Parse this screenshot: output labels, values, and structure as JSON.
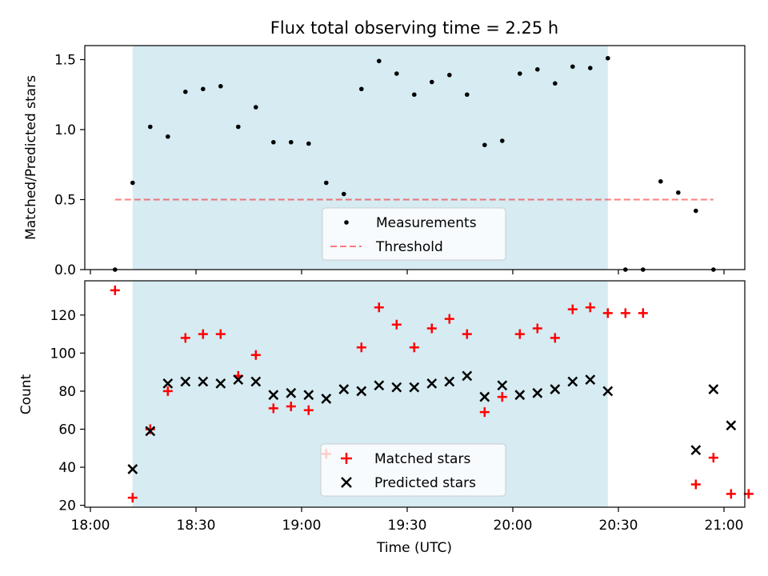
{
  "colors": {
    "shade": "#ADD8E6",
    "measurement": "#000000",
    "threshold": "#ff0000",
    "matched": "#ff0000",
    "predicted": "#000000"
  },
  "chart_data": [
    {
      "type": "scatter",
      "title": "Flux total observing time = 2.25 h",
      "ylabel": "Matched/Predicted stars",
      "xlabel": "",
      "x_axis": "time (minutes after 18:00 UTC)",
      "ylim": [
        0,
        1.6
      ],
      "yticks": [
        "0.0",
        "0.5",
        "1.0",
        "1.5"
      ],
      "shaded_interval": [
        "18:12",
        "20:27"
      ],
      "legend": {
        "placement": "lower center",
        "entries": [
          "Measurements",
          "Threshold"
        ]
      },
      "series": [
        {
          "name": "Measurements",
          "marker": "dot",
          "x": [
            "18:07",
            "18:12",
            "18:17",
            "18:22",
            "18:27",
            "18:32",
            "18:37",
            "18:42",
            "18:47",
            "18:52",
            "18:57",
            "19:02",
            "19:07",
            "19:12",
            "19:17",
            "19:22",
            "19:27",
            "19:32",
            "19:37",
            "19:42",
            "19:47",
            "19:52",
            "19:57",
            "20:02",
            "20:07",
            "20:12",
            "20:17",
            "20:22",
            "20:27",
            "20:32",
            "20:37",
            "20:42",
            "20:47",
            "20:52",
            "20:57"
          ],
          "values": [
            0.0,
            0.62,
            1.02,
            0.95,
            1.27,
            1.29,
            1.31,
            1.02,
            1.16,
            0.91,
            0.91,
            0.9,
            0.62,
            0.54,
            1.29,
            1.49,
            1.4,
            1.25,
            1.34,
            1.39,
            1.25,
            0.89,
            0.92,
            1.4,
            1.43,
            1.33,
            1.45,
            1.44,
            1.51,
            0.0,
            0.0,
            0.63,
            0.55,
            0.42,
            0.0
          ]
        },
        {
          "name": "Threshold",
          "line": "dashed",
          "x": [
            "18:07",
            "20:57"
          ],
          "values": [
            0.5,
            0.5
          ]
        }
      ]
    },
    {
      "type": "scatter",
      "title": "",
      "ylabel": "Count",
      "xlabel": "Time (UTC)",
      "xticks": [
        "18:00",
        "18:30",
        "19:00",
        "19:30",
        "20:00",
        "20:30",
        "21:00"
      ],
      "ylim": [
        19,
        138
      ],
      "yticks": [
        "20",
        "40",
        "60",
        "80",
        "100",
        "120"
      ],
      "shaded_interval": [
        "18:12",
        "20:27"
      ],
      "legend": {
        "placement": "lower center",
        "entries": [
          "Matched stars",
          "Predicted stars"
        ]
      },
      "series": [
        {
          "name": "Matched stars",
          "marker": "plus",
          "x": [
            "18:07",
            "18:12",
            "18:17",
            "18:22",
            "18:27",
            "18:32",
            "18:37",
            "18:42",
            "18:47",
            "18:52",
            "18:57",
            "19:02",
            "19:07",
            "19:17",
            "19:22",
            "19:27",
            "19:32",
            "19:37",
            "19:42",
            "19:47",
            "19:52",
            "19:57",
            "20:02",
            "20:07",
            "20:12",
            "20:17",
            "20:22",
            "20:27",
            "20:32",
            "20:37",
            "20:52",
            "20:57",
            "21:02",
            "21:07"
          ],
          "values": [
            133,
            24,
            60,
            80,
            108,
            110,
            110,
            88,
            99,
            71,
            72,
            70,
            47,
            103,
            124,
            115,
            103,
            113,
            118,
            110,
            69,
            77,
            110,
            113,
            108,
            123,
            124,
            121,
            121,
            121,
            31,
            45,
            26,
            26
          ]
        },
        {
          "name": "Predicted stars",
          "marker": "x",
          "x": [
            "18:12",
            "18:17",
            "18:22",
            "18:27",
            "18:32",
            "18:37",
            "18:42",
            "18:47",
            "18:52",
            "18:57",
            "19:02",
            "19:07",
            "19:12",
            "19:17",
            "19:22",
            "19:27",
            "19:32",
            "19:37",
            "19:42",
            "19:47",
            "19:52",
            "19:57",
            "20:02",
            "20:07",
            "20:12",
            "20:17",
            "20:22",
            "20:27",
            "20:52",
            "20:57",
            "21:02"
          ],
          "values": [
            39,
            59,
            84,
            85,
            85,
            84,
            86,
            85,
            78,
            79,
            78,
            76,
            81,
            80,
            83,
            82,
            82,
            84,
            85,
            88,
            77,
            83,
            78,
            79,
            81,
            85,
            86,
            80,
            49,
            81,
            62
          ]
        }
      ]
    }
  ]
}
